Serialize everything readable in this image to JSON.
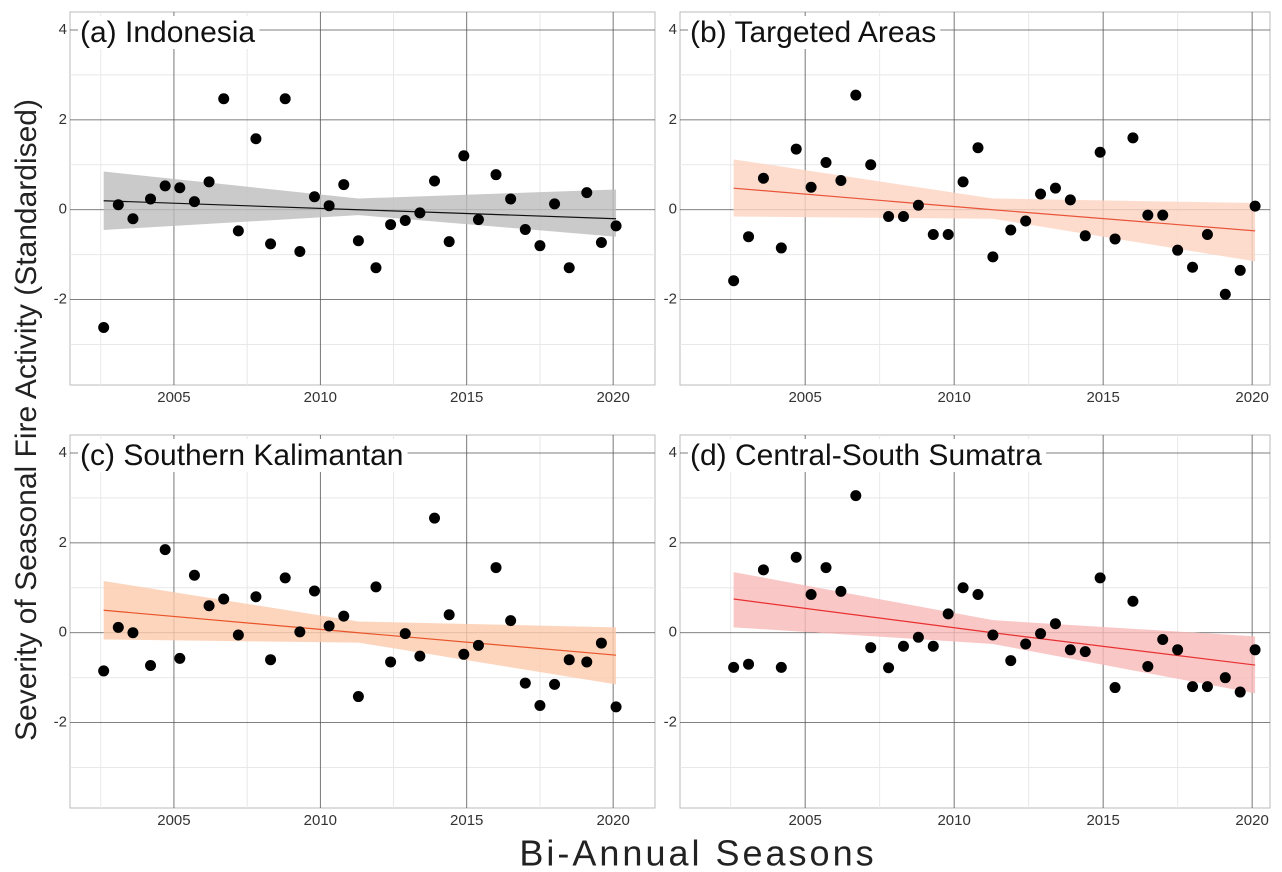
{
  "xlabel": "Bi-Annual Seasons",
  "ylabel": "Severity of Seasonal Fire Activity (Standardised)",
  "chart_data": [
    {
      "type": "scatter",
      "title": "(a) Indonesia",
      "color": "#000000",
      "x": [
        2002.6,
        2003.1,
        2003.6,
        2004.2,
        2004.7,
        2005.2,
        2005.7,
        2006.2,
        2006.7,
        2007.2,
        2007.8,
        2008.3,
        2008.8,
        2009.3,
        2009.8,
        2010.3,
        2010.8,
        2011.3,
        2011.9,
        2012.4,
        2012.9,
        2013.4,
        2013.9,
        2014.4,
        2014.9,
        2015.4,
        2016.0,
        2016.5,
        2017.0,
        2017.5,
        2018.0,
        2018.5,
        2019.1,
        2019.6,
        2020.1
      ],
      "values": [
        -2.62,
        0.11,
        -0.2,
        0.24,
        0.53,
        0.49,
        0.18,
        0.62,
        2.47,
        -0.47,
        1.58,
        -0.76,
        2.47,
        -0.93,
        0.29,
        0.09,
        0.56,
        -0.69,
        -1.29,
        -0.33,
        -0.24,
        -0.07,
        0.64,
        -0.71,
        1.2,
        -0.22,
        0.78,
        0.24,
        -0.44,
        -0.8,
        0.13,
        -1.29,
        0.38,
        -0.73,
        -0.36
      ],
      "trend": {
        "x": [
          2002.6,
          2011.3,
          2020.1
        ],
        "values": [
          0.2,
          0.0,
          -0.2
        ],
        "lower": [
          -0.45,
          -0.12,
          -0.6
        ],
        "upper": [
          0.85,
          0.25,
          0.45
        ],
        "color": "#111111",
        "band_color": "#bdbdbd"
      },
      "xlim": [
        2001.45,
        2021.43
      ],
      "ylim": [
        -3.9,
        4.4
      ],
      "xticks": [
        2005,
        2010,
        2015,
        2020
      ],
      "yticks": [
        -2,
        0,
        2,
        4
      ],
      "xticks_minor": [
        2002.5,
        2007.5,
        2012.5,
        2017.5
      ],
      "yticks_minor": [
        -3,
        -1,
        1,
        3
      ],
      "grid": true
    },
    {
      "type": "scatter",
      "title": "(b) Targeted Areas",
      "color": "#000000",
      "x": [
        2002.6,
        2003.1,
        2003.6,
        2004.2,
        2004.7,
        2005.2,
        2005.7,
        2006.2,
        2006.7,
        2007.2,
        2007.8,
        2008.3,
        2008.8,
        2009.3,
        2009.8,
        2010.3,
        2010.8,
        2011.3,
        2011.9,
        2012.4,
        2012.9,
        2013.4,
        2013.9,
        2014.4,
        2014.9,
        2015.4,
        2016.0,
        2016.5,
        2017.0,
        2017.5,
        2018.0,
        2018.5,
        2019.1,
        2019.6,
        2020.1
      ],
      "values": [
        -1.58,
        -0.6,
        0.7,
        -0.85,
        1.35,
        0.5,
        1.05,
        0.65,
        2.55,
        1.0,
        -0.15,
        -0.15,
        0.1,
        -0.55,
        -0.55,
        0.62,
        1.38,
        -1.05,
        -0.45,
        -0.25,
        0.35,
        0.48,
        0.22,
        -0.58,
        1.28,
        -0.65,
        1.6,
        -0.12,
        -0.12,
        -0.9,
        -1.28,
        -0.55,
        -1.88,
        -1.35,
        0.08
      ],
      "trend": {
        "x": [
          2002.6,
          2011.3,
          2020.1
        ],
        "values": [
          0.48,
          0.0,
          -0.47
        ],
        "lower": [
          -0.15,
          -0.2,
          -1.15
        ],
        "upper": [
          1.12,
          0.25,
          0.15
        ],
        "color": "#e8553a",
        "band_color": "#fcd3c1"
      },
      "xlim": [
        2000.8,
        2020.6
      ],
      "ylim": [
        -3.9,
        4.4
      ],
      "xticks": [
        2005,
        2010,
        2015,
        2020
      ],
      "yticks": [
        -2,
        0,
        2,
        4
      ],
      "xticks_minor": [
        2002.5,
        2007.5,
        2012.5,
        2017.5
      ],
      "yticks_minor": [
        -3,
        -1,
        1,
        3
      ],
      "grid": true
    },
    {
      "type": "scatter",
      "title": "(c) Southern Kalimantan",
      "color": "#000000",
      "x": [
        2002.6,
        2003.1,
        2003.6,
        2004.2,
        2004.7,
        2005.2,
        2005.7,
        2006.2,
        2006.7,
        2007.2,
        2007.8,
        2008.3,
        2008.8,
        2009.3,
        2009.8,
        2010.3,
        2010.8,
        2011.3,
        2011.9,
        2012.4,
        2012.9,
        2013.4,
        2013.9,
        2014.4,
        2014.9,
        2015.4,
        2016.0,
        2016.5,
        2017.0,
        2017.5,
        2018.0,
        2018.5,
        2019.1,
        2019.6,
        2020.1
      ],
      "values": [
        -0.85,
        0.12,
        0.0,
        -0.73,
        1.85,
        -0.57,
        1.28,
        0.6,
        0.75,
        -0.05,
        0.8,
        -0.6,
        1.22,
        0.02,
        0.93,
        0.15,
        0.37,
        -1.42,
        1.02,
        -0.65,
        -0.02,
        -0.52,
        2.55,
        0.4,
        -0.48,
        -0.28,
        1.45,
        0.27,
        -1.12,
        -1.62,
        -1.15,
        -0.6,
        -0.65,
        -0.23,
        -1.65
      ],
      "trend": {
        "x": [
          2002.6,
          2011.3,
          2020.1
        ],
        "values": [
          0.5,
          0.0,
          -0.5
        ],
        "lower": [
          -0.15,
          -0.22,
          -1.15
        ],
        "upper": [
          1.15,
          0.25,
          0.12
        ],
        "color": "#e8552a",
        "band_color": "#fdcbad"
      },
      "xlim": [
        2001.45,
        2021.43
      ],
      "ylim": [
        -3.9,
        4.4
      ],
      "xticks": [
        2005,
        2010,
        2015,
        2020
      ],
      "yticks": [
        -2,
        0,
        2,
        4
      ],
      "xticks_minor": [
        2002.5,
        2007.5,
        2012.5,
        2017.5
      ],
      "yticks_minor": [
        -3,
        -1,
        1,
        3
      ],
      "grid": true
    },
    {
      "type": "scatter",
      "title": "(d) Central-South Sumatra",
      "color": "#000000",
      "x": [
        2002.6,
        2003.1,
        2003.6,
        2004.2,
        2004.7,
        2005.2,
        2005.7,
        2006.2,
        2006.7,
        2007.2,
        2007.8,
        2008.3,
        2008.8,
        2009.3,
        2009.8,
        2010.3,
        2010.8,
        2011.3,
        2011.9,
        2012.4,
        2012.9,
        2013.4,
        2013.9,
        2014.4,
        2014.9,
        2015.4,
        2016.0,
        2016.5,
        2017.0,
        2017.5,
        2018.0,
        2018.5,
        2019.1,
        2019.6,
        2020.1
      ],
      "values": [
        -0.77,
        -0.7,
        1.4,
        -0.77,
        1.68,
        0.85,
        1.45,
        0.92,
        3.05,
        -0.33,
        -0.78,
        -0.3,
        -0.1,
        -0.3,
        0.42,
        1.0,
        0.85,
        -0.05,
        -0.62,
        -0.25,
        -0.02,
        0.2,
        -0.38,
        -0.42,
        1.22,
        -1.22,
        0.7,
        -0.75,
        -0.15,
        -0.38,
        -1.2,
        -1.2,
        -1.0,
        -1.32,
        -0.38
      ],
      "trend": {
        "x": [
          2002.6,
          2011.3,
          2020.1
        ],
        "values": [
          0.75,
          0.0,
          -0.72
        ],
        "lower": [
          0.12,
          -0.25,
          -1.35
        ],
        "upper": [
          1.35,
          0.28,
          -0.08
        ],
        "color": "#e83030",
        "band_color": "#f9b9b9"
      },
      "xlim": [
        2000.8,
        2020.6
      ],
      "ylim": [
        -3.9,
        4.4
      ],
      "xticks": [
        2005,
        2010,
        2015,
        2020
      ],
      "yticks": [
        -2,
        0,
        2,
        4
      ],
      "xticks_minor": [
        2002.5,
        2007.5,
        2012.5,
        2017.5
      ],
      "yticks_minor": [
        -3,
        -1,
        1,
        3
      ],
      "grid": true
    }
  ]
}
